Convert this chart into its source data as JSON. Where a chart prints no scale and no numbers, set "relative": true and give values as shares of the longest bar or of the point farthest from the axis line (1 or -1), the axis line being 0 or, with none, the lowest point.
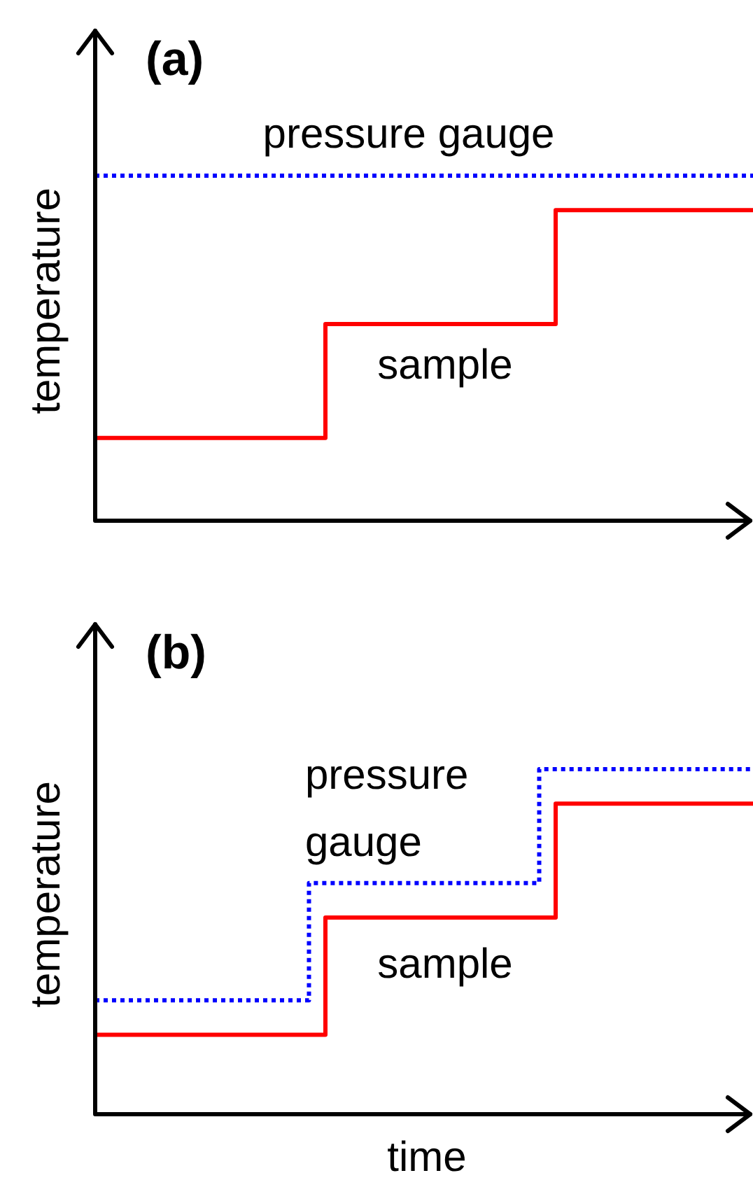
{
  "chart_data": [
    {
      "type": "step",
      "title": "(a)",
      "ylabel": "temperature",
      "relative": true,
      "legend": false,
      "tick_labels": false,
      "categories": [
        null,
        null,
        null,
        null,
        null,
        null,
        null,
        null,
        null,
        null,
        null,
        null,
        null,
        null,
        null,
        null,
        null,
        null,
        null,
        null,
        null,
        null,
        null,
        null,
        null,
        null,
        null,
        null,
        null,
        null,
        null,
        null,
        null,
        null,
        null,
        null,
        null,
        null,
        null,
        null,
        null
      ],
      "series": [
        {
          "name": "pressure gauge",
          "color": "#0000ff",
          "line_style": "dotted",
          "values": [
            1,
            1,
            1,
            1,
            1,
            1,
            1,
            1,
            1,
            1,
            1,
            1,
            1,
            1,
            1,
            1,
            1,
            1,
            1,
            1,
            1,
            1,
            1,
            1,
            1,
            1,
            1,
            1,
            1,
            1,
            1,
            1,
            1,
            1,
            1,
            1,
            1,
            1,
            1,
            1,
            1
          ]
        },
        {
          "name": "sample",
          "color": "#ff0000",
          "line_style": "solid",
          "values": [
            0.24,
            0.24,
            0.24,
            0.24,
            0.24,
            0.24,
            0.24,
            0.24,
            0.24,
            0.24,
            0.24,
            0.24,
            0.24,
            0.24,
            0.57,
            0.57,
            0.57,
            0.57,
            0.57,
            0.57,
            0.57,
            0.57,
            0.57,
            0.57,
            0.57,
            0.57,
            0.57,
            0.57,
            0.9,
            0.9,
            0.9,
            0.9,
            0.9,
            0.9,
            0.9,
            0.9,
            0.9,
            0.9,
            0.9,
            0.9,
            0.9
          ]
        }
      ]
    },
    {
      "type": "step",
      "title": "(b)",
      "ylabel": "temperature",
      "xlabel": "time",
      "relative": true,
      "legend": false,
      "tick_labels": false,
      "categories": [
        null,
        null,
        null,
        null,
        null,
        null,
        null,
        null,
        null,
        null,
        null,
        null,
        null,
        null,
        null,
        null,
        null,
        null,
        null,
        null,
        null,
        null,
        null,
        null,
        null,
        null,
        null,
        null,
        null,
        null,
        null,
        null,
        null,
        null,
        null,
        null,
        null,
        null,
        null,
        null,
        null
      ],
      "series": [
        {
          "name": "pressure gauge",
          "color": "#0000ff",
          "line_style": "dotted",
          "values": [
            0.33,
            0.33,
            0.33,
            0.33,
            0.33,
            0.33,
            0.33,
            0.33,
            0.33,
            0.33,
            0.33,
            0.33,
            0.33,
            0.67,
            0.67,
            0.67,
            0.67,
            0.67,
            0.67,
            0.67,
            0.67,
            0.67,
            0.67,
            0.67,
            0.67,
            0.67,
            0.67,
            1,
            1,
            1,
            1,
            1,
            1,
            1,
            1,
            1,
            1,
            1,
            1,
            1,
            1
          ]
        },
        {
          "name": "sample",
          "color": "#ff0000",
          "line_style": "solid",
          "values": [
            0.23,
            0.23,
            0.23,
            0.23,
            0.23,
            0.23,
            0.23,
            0.23,
            0.23,
            0.23,
            0.23,
            0.23,
            0.23,
            0.23,
            0.57,
            0.57,
            0.57,
            0.57,
            0.57,
            0.57,
            0.57,
            0.57,
            0.57,
            0.57,
            0.57,
            0.57,
            0.57,
            0.57,
            0.9,
            0.9,
            0.9,
            0.9,
            0.9,
            0.9,
            0.9,
            0.9,
            0.9,
            0.9,
            0.9,
            0.9,
            0.9
          ]
        }
      ]
    }
  ]
}
